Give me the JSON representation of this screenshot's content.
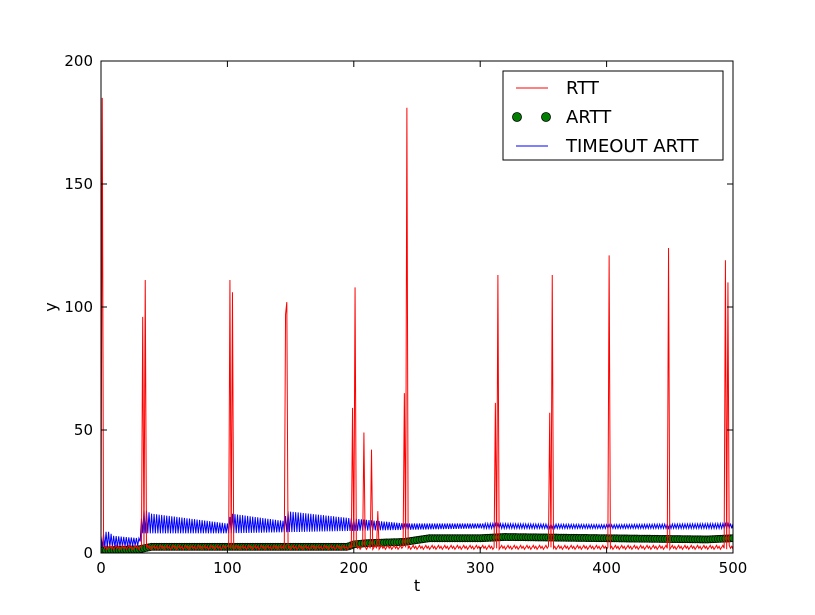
{
  "chart_data": {
    "type": "line",
    "title": "",
    "xlabel": "t",
    "ylabel": "y",
    "xlim": [
      0,
      500
    ],
    "ylim": [
      0,
      200
    ],
    "xticks": [
      0,
      100,
      200,
      300,
      400,
      500
    ],
    "yticks": [
      0,
      50,
      100,
      150,
      200
    ],
    "grid": false,
    "legend_position": "top-right",
    "series": [
      {
        "name": "RTT",
        "style": "line",
        "color": "#ff0000",
        "baseline": 1.5,
        "spikes": [
          [
            1,
            185
          ],
          [
            33,
            96
          ],
          [
            35,
            111
          ],
          [
            102,
            111
          ],
          [
            104,
            106
          ],
          [
            146,
            97
          ],
          [
            147,
            102
          ],
          [
            199,
            59
          ],
          [
            201,
            108
          ],
          [
            208,
            49
          ],
          [
            214,
            42
          ],
          [
            219,
            17
          ],
          [
            240,
            65
          ],
          [
            242,
            181
          ],
          [
            312,
            61
          ],
          [
            314,
            113
          ],
          [
            355,
            57
          ],
          [
            357,
            113
          ],
          [
            402,
            121
          ],
          [
            449,
            124
          ],
          [
            494,
            119
          ],
          [
            496,
            110
          ]
        ]
      },
      {
        "name": "ARTT",
        "style": "markers",
        "color": "#008000",
        "points": [
          [
            0,
            1
          ],
          [
            30,
            1.5
          ],
          [
            40,
            2.5
          ],
          [
            100,
            2.5
          ],
          [
            195,
            2.5
          ],
          [
            200,
            3.5
          ],
          [
            210,
            4
          ],
          [
            240,
            4.5
          ],
          [
            260,
            6
          ],
          [
            300,
            6
          ],
          [
            320,
            6.5
          ],
          [
            400,
            6
          ],
          [
            480,
            5.5
          ],
          [
            500,
            6
          ]
        ]
      },
      {
        "name": "TIMEOUT ARTT",
        "style": "line",
        "color": "#0000ff",
        "upper_envelope": [
          [
            0,
            7
          ],
          [
            5,
            9
          ],
          [
            10,
            7
          ],
          [
            30,
            6
          ],
          [
            33,
            18
          ],
          [
            40,
            16
          ],
          [
            100,
            12
          ],
          [
            103,
            16
          ],
          [
            145,
            13
          ],
          [
            147,
            17
          ],
          [
            200,
            14
          ],
          [
            240,
            12
          ],
          [
            300,
            12
          ],
          [
            400,
            11.5
          ],
          [
            500,
            12
          ]
        ],
        "lower_envelope": [
          [
            0,
            2
          ],
          [
            30,
            3
          ],
          [
            33,
            8
          ],
          [
            100,
            8
          ],
          [
            200,
            9
          ],
          [
            300,
            10
          ],
          [
            400,
            10
          ],
          [
            500,
            10
          ]
        ]
      }
    ]
  }
}
